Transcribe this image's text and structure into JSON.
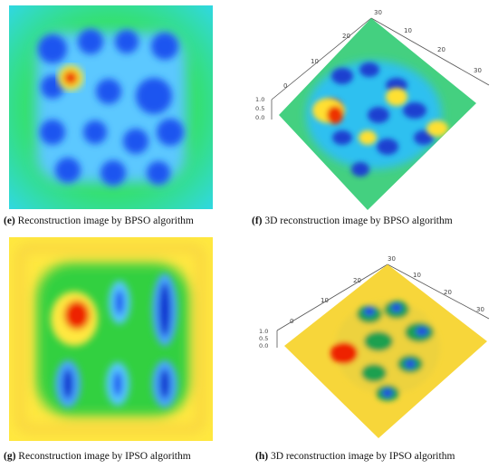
{
  "panels": [
    {
      "letter": "(e)",
      "caption": "Reconstruction image by BPSO algorithm"
    },
    {
      "letter": "(f)",
      "caption": "3D reconstruction image by BPSO algorithm",
      "axis_ticks_top": [
        "30",
        "20",
        "10",
        "0"
      ],
      "axis_ticks_right": [
        "10",
        "20",
        "30"
      ],
      "z_ticks": [
        "1.0",
        "0.5",
        "0.0"
      ]
    },
    {
      "letter": "(g)",
      "caption": "Reconstruction image by IPSO algorithm"
    },
    {
      "letter": "(h)",
      "caption": "3D reconstruction image by IPSO algorithm",
      "axis_ticks_top": [
        "30",
        "20",
        "10",
        "0"
      ],
      "axis_ticks_right": [
        "10",
        "20",
        "30"
      ],
      "z_ticks": [
        "1.0",
        "0.5",
        "0.0"
      ]
    }
  ],
  "colors": {
    "low": "#0033dd",
    "mid_low": "#33aaff",
    "mid": "#22dd44",
    "mid_high": "#ffee33",
    "high": "#ee2200"
  }
}
